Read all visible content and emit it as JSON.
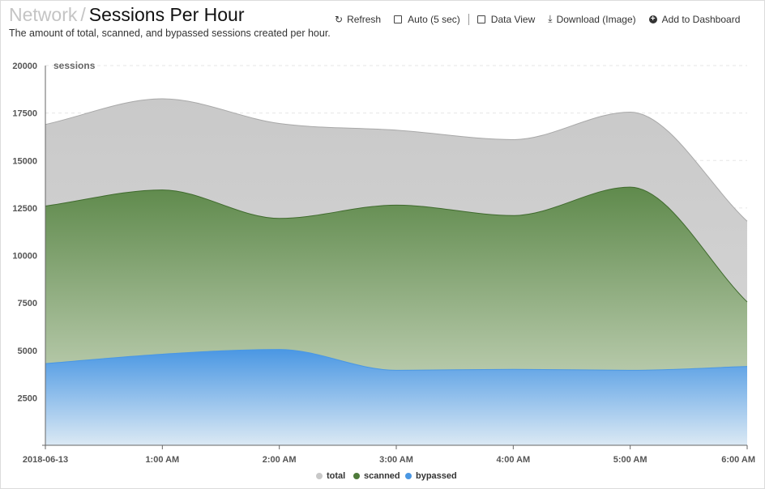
{
  "header": {
    "breadcrumb_parent": "Network",
    "separator": "/",
    "title": "Sessions Per Hour",
    "subtitle": "The amount of total, scanned, and bypassed sessions created per hour."
  },
  "toolbar": {
    "refresh_label": "Refresh",
    "auto_label": "Auto (5 sec)",
    "data_view_label": "Data View",
    "download_label": "Download (Image)",
    "add_label": "Add to Dashboard"
  },
  "colors": {
    "total": "#c8c8c8",
    "scanned": "#4e7a3a",
    "bypassed": "#4a97e3"
  },
  "chart_data": {
    "type": "area",
    "x": [
      "2018-06-13",
      "1:00 AM",
      "2:00 AM",
      "3:00 AM",
      "4:00 AM",
      "5:00 AM",
      "6:00 AM"
    ],
    "ylabel": "sessions",
    "ylim": [
      0,
      20000
    ],
    "yticks": [
      2500,
      5000,
      7500,
      10000,
      12500,
      15000,
      17500,
      20000
    ],
    "grid": true,
    "legend": "bottom",
    "series": [
      {
        "name": "total",
        "color": "#c8c8c8",
        "values": [
          16900,
          18250,
          16950,
          16600,
          16100,
          17550,
          11800
        ]
      },
      {
        "name": "scanned",
        "color": "#4e7a3a",
        "values": [
          12600,
          13450,
          11950,
          12650,
          12100,
          13600,
          7550
        ]
      },
      {
        "name": "bypassed",
        "color": "#4a97e3",
        "values": [
          4300,
          4800,
          5050,
          3950,
          4000,
          3950,
          4150
        ]
      }
    ]
  }
}
